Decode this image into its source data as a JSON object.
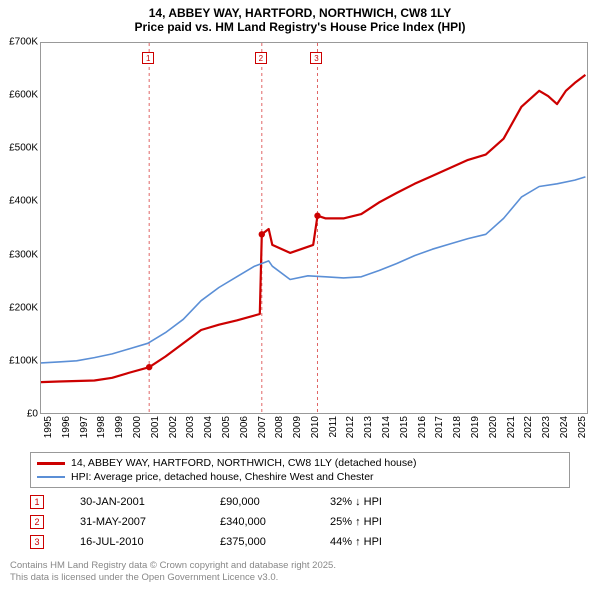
{
  "title": {
    "line1": "14, ABBEY WAY, HARTFORD, NORTHWICH, CW8 1LY",
    "line2": "Price paid vs. HM Land Registry's House Price Index (HPI)"
  },
  "chart": {
    "type": "line",
    "background_color": "#ffffff",
    "border_color": "#999999",
    "x_range": [
      1995,
      2025.8
    ],
    "y_range": [
      0,
      700000
    ],
    "yticks": [
      0,
      100000,
      200000,
      300000,
      400000,
      500000,
      600000,
      700000
    ],
    "ytick_labels": [
      "£0",
      "£100K",
      "£200K",
      "£300K",
      "£400K",
      "£500K",
      "£600K",
      "£700K"
    ],
    "xticks": [
      1995,
      1996,
      1997,
      1998,
      1999,
      2000,
      2001,
      2002,
      2003,
      2004,
      2005,
      2006,
      2007,
      2008,
      2009,
      2010,
      2011,
      2012,
      2013,
      2014,
      2015,
      2016,
      2017,
      2018,
      2019,
      2020,
      2021,
      2022,
      2023,
      2024,
      2025
    ],
    "grid_color": "#d8d8d8",
    "series": [
      {
        "id": "price_paid",
        "label": "14, ABBEY WAY, HARTFORD, NORTHWICH, CW8 1LY (detached house)",
        "color": "#cc0000",
        "line_width": 2.2,
        "data": [
          [
            1995,
            62000
          ],
          [
            1996,
            63000
          ],
          [
            1997,
            64000
          ],
          [
            1998,
            65000
          ],
          [
            1999,
            70000
          ],
          [
            2000,
            80000
          ],
          [
            2001.08,
            90000
          ],
          [
            2002,
            110000
          ],
          [
            2003,
            135000
          ],
          [
            2004,
            160000
          ],
          [
            2005,
            170000
          ],
          [
            2006,
            178000
          ],
          [
            2007.3,
            190000
          ],
          [
            2007.41,
            340000
          ],
          [
            2007.8,
            350000
          ],
          [
            2008,
            320000
          ],
          [
            2009,
            305000
          ],
          [
            2010.3,
            320000
          ],
          [
            2010.54,
            375000
          ],
          [
            2011,
            370000
          ],
          [
            2012,
            370000
          ],
          [
            2013,
            378000
          ],
          [
            2014,
            400000
          ],
          [
            2015,
            418000
          ],
          [
            2016,
            435000
          ],
          [
            2017,
            450000
          ],
          [
            2018,
            465000
          ],
          [
            2019,
            480000
          ],
          [
            2020,
            490000
          ],
          [
            2021,
            520000
          ],
          [
            2022,
            580000
          ],
          [
            2023,
            610000
          ],
          [
            2023.5,
            600000
          ],
          [
            2024,
            585000
          ],
          [
            2024.5,
            610000
          ],
          [
            2025,
            625000
          ],
          [
            2025.6,
            640000
          ]
        ],
        "sale_points": [
          [
            2001.08,
            90000
          ],
          [
            2007.41,
            340000
          ],
          [
            2010.54,
            375000
          ]
        ]
      },
      {
        "id": "hpi",
        "label": "HPI: Average price, detached house, Cheshire West and Chester",
        "color": "#5b8fd6",
        "line_width": 1.6,
        "data": [
          [
            1995,
            98000
          ],
          [
            1996,
            100000
          ],
          [
            1997,
            102000
          ],
          [
            1998,
            108000
          ],
          [
            1999,
            115000
          ],
          [
            2000,
            125000
          ],
          [
            2001,
            135000
          ],
          [
            2002,
            155000
          ],
          [
            2003,
            180000
          ],
          [
            2004,
            215000
          ],
          [
            2005,
            240000
          ],
          [
            2006,
            260000
          ],
          [
            2007,
            280000
          ],
          [
            2007.8,
            290000
          ],
          [
            2008,
            280000
          ],
          [
            2009,
            255000
          ],
          [
            2010,
            262000
          ],
          [
            2011,
            260000
          ],
          [
            2012,
            258000
          ],
          [
            2013,
            260000
          ],
          [
            2014,
            272000
          ],
          [
            2015,
            285000
          ],
          [
            2016,
            300000
          ],
          [
            2017,
            312000
          ],
          [
            2018,
            322000
          ],
          [
            2019,
            332000
          ],
          [
            2020,
            340000
          ],
          [
            2021,
            370000
          ],
          [
            2022,
            410000
          ],
          [
            2023,
            430000
          ],
          [
            2024,
            435000
          ],
          [
            2025,
            442000
          ],
          [
            2025.6,
            448000
          ]
        ]
      }
    ],
    "vmarkers": [
      {
        "num": "1",
        "x": 2001.08,
        "color": "#cc0000"
      },
      {
        "num": "2",
        "x": 2007.41,
        "color": "#cc0000"
      },
      {
        "num": "3",
        "x": 2010.54,
        "color": "#cc0000"
      }
    ]
  },
  "legend": {
    "items": [
      {
        "color": "#cc0000",
        "thick": true,
        "label": "14, ABBEY WAY, HARTFORD, NORTHWICH, CW8 1LY (detached house)"
      },
      {
        "color": "#5b8fd6",
        "thick": false,
        "label": "HPI: Average price, detached house, Cheshire West and Chester"
      }
    ]
  },
  "marker_table": [
    {
      "num": "1",
      "date": "30-JAN-2001",
      "price": "£90,000",
      "pct": "32% ↓ HPI"
    },
    {
      "num": "2",
      "date": "31-MAY-2007",
      "price": "£340,000",
      "pct": "25% ↑ HPI"
    },
    {
      "num": "3",
      "date": "16-JUL-2010",
      "price": "£375,000",
      "pct": "44% ↑ HPI"
    }
  ],
  "footer": {
    "line1": "Contains HM Land Registry data © Crown copyright and database right 2025.",
    "line2": "This data is licensed under the Open Government Licence v3.0."
  }
}
